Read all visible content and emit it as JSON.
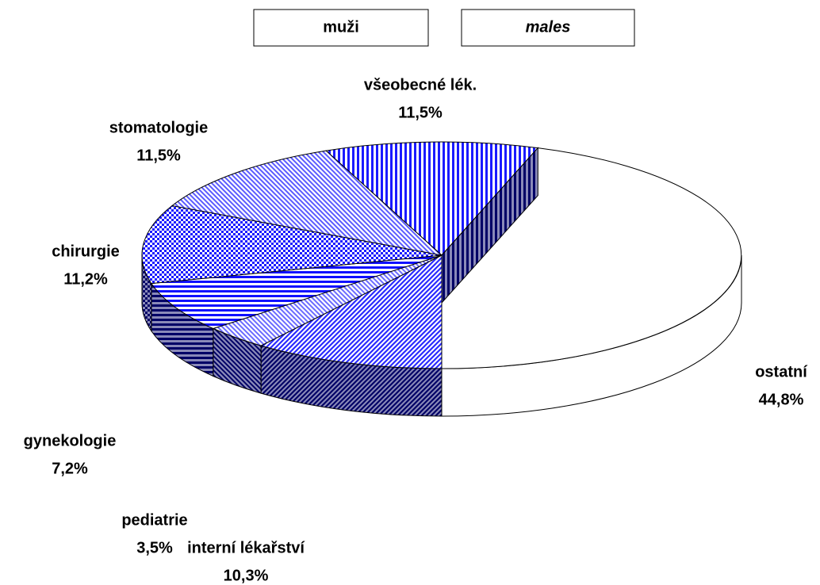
{
  "chart_data": {
    "type": "pie3d",
    "title": "muži",
    "subtitle": "males",
    "categories": [
      "všeobecné lék.",
      "ostatní",
      "interní lékařství",
      "pediatrie",
      "gynekologie",
      "chirurgie",
      "stomatologie"
    ],
    "values": [
      11.5,
      44.8,
      10.3,
      3.5,
      7.2,
      11.2,
      11.5
    ],
    "value_labels": [
      "11,5%",
      "44,8%",
      "10,3%",
      "3,5%",
      "7,2%",
      "11,2%",
      "11,5%"
    ],
    "colors": [
      "#1a1aff",
      "#ffffff",
      "#2a2aff",
      "#6a6aff",
      "#1010ff",
      "#1a1aff",
      "#5a5aff"
    ]
  }
}
